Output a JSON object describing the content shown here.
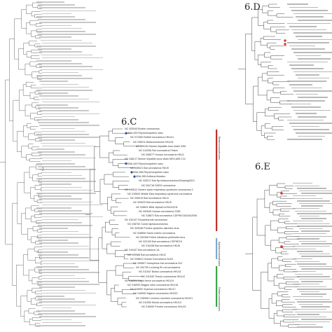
{
  "panels": [
    {
      "id": "6.C",
      "label": "6.C"
    },
    {
      "id": "6.D",
      "label": "6.D"
    },
    {
      "id": "6.E",
      "label": "6.E"
    }
  ],
  "clades": [
    {
      "label": "Betacoronaviruses",
      "color": "#c0302c"
    },
    {
      "label": "Alphacoronaviruses",
      "color": "#7fa9cf"
    },
    {
      "label": "Deltacoronaviruses",
      "color": "#3aa548"
    }
  ],
  "highlight_colors": {
    "panel_c_marker": "#2b4aa8",
    "panel_e_marker": "#d9312c"
  },
  "panel_c_tips": [
    "NC 003045 Bovine coronavirus",
    "KBA-253 Rhynchonycteris naso",
    "NC 017083 Rabbit coronavirus HKU14",
    "NC 026011 Betacoronavirus HKU24",
    "AC 000192 Murine hepatitis virus strain JHM",
    "NC 012936 Rat coronavirus Parker",
    "NC 006577 Human coronavirus HKU1",
    "NC 048217 Murine hepatitis virus strain MHV-A59 C12",
    "KBA-343 Rhynchonycteris naso",
    "NC 009021 Bat coronavirus HKU9",
    "KBA-286 Rhynchonycteris naso",
    "KBA-285 Artibeus lituratus",
    "NC 025217 Bat Hp-betacoronavirus/Zhejiang2013",
    "NC 004718 SARS coronavirus",
    "NC 045512 Severe acute respiratory syndrome coronavirus 2",
    "NC 019843 Middle East respiratory syndrome coronavirus",
    "NC 009019 Bat coronavirus HKU4",
    "NC 009020 Bat coronavirus HKU5",
    "NC 028811 BtMr-AlphaCoV/SAX2011",
    "NC 002645 Human coronavirus 229E",
    "NC 018871 Bat coronavirus CDPHE15/USA/2006",
    "NC 032107 Rousettus bat coronavirus",
    "NC 028752 Camel alphacoronavirus",
    "NC 003436 Porcine epidemic diarrhea virus",
    "NC 028806 Swine enteric coronavirus",
    "NC 002306 Feline infectious peritonitis virus",
    "NC 022103 Bat coronavirus CDPHE15",
    "NC 010438 Bat coronavirus HKU8",
    "NC 010437 Bat coronavirus 1A",
    "NC 009988 Bat coronavirus HKU2",
    "NC 005831 Human Coronavirus NL63",
    "NC 009657 Scotophilus bat coronavirus 512",
    "NC 032730 Lucheng Rn rat coronavirus",
    "NC 011547 Bulbul coronavirus HKU11",
    "NC 011549 Thrush coronavirus HKU12",
    "NC 016994 Night heron coronavirus HKU19",
    "NC 016993 Magpie robin coronavirus HKU18",
    "NC 016992 Sparrow coronavirus HKU17",
    "NC 016995 Wigeon coronavirus HKU20",
    "NC 016996 Common moorhen coronavirus HKU21",
    "NC 011550 Munia coronavirus HKU13",
    "NC 016990 Porcine coronavirus HKU15"
  ]
}
